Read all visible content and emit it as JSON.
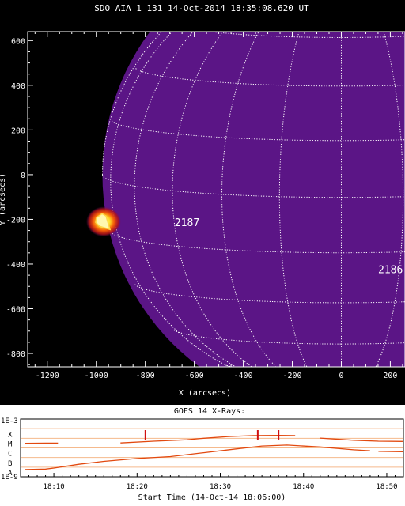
{
  "chart_data": [
    {
      "type": "image",
      "title": "SDO AIA_1 131 14-Oct-2014 18:35:08.620 UT",
      "xlabel": "X (arcsecs)",
      "ylabel": "Y (arcsecs)",
      "xlim": [
        -1280,
        260
      ],
      "ylim": [
        -860,
        640
      ],
      "xticks": [
        -1200,
        -1000,
        -800,
        -600,
        -400,
        -200,
        0,
        200
      ],
      "yticks": [
        -800,
        -600,
        -400,
        -200,
        0,
        200,
        400,
        600
      ],
      "solar_radius_arcsec": 975,
      "grid": "heliographic, 15 degree spacing, dotted white",
      "colors": {
        "disk": "#5b1586",
        "space": "#000000",
        "grid": "#ffffff"
      },
      "flare": {
        "x": -970,
        "y": -210
      },
      "regions": [
        {
          "label": "2187",
          "x": -680,
          "y": -230
        },
        {
          "label": "2186",
          "x": 260,
          "y": -440
        }
      ]
    },
    {
      "type": "line",
      "title": "GOES 14 X-Rays:",
      "xlabel": "Start Time (14-Oct-14 18:06:00)",
      "x_tick_labels": [
        "18:10",
        "18:20",
        "18:30",
        "18:40",
        "18:50"
      ],
      "x_tick_minutes": [
        10,
        20,
        30,
        40,
        50
      ],
      "xlim_minutes": [
        6,
        52
      ],
      "y_left_labels": [
        "1E-3",
        "1E-9"
      ],
      "y_classes": [
        "X",
        "M",
        "C",
        "B",
        "A"
      ],
      "ylim_log10": [
        -9,
        -3
      ],
      "series": [
        {
          "color": "#e2490f",
          "segments": [
            [
              [
                6.5,
                -5.52
              ],
              [
                9,
                -5.5
              ],
              [
                10.5,
                -5.5
              ]
            ],
            [
              [
                18,
                -5.48
              ],
              [
                22,
                -5.3
              ],
              [
                26,
                -5.15
              ],
              [
                28,
                -5.0
              ],
              [
                31,
                -4.82
              ],
              [
                34,
                -4.72
              ],
              [
                37,
                -4.7
              ],
              [
                39,
                -4.72
              ]
            ],
            [
              [
                42,
                -4.98
              ],
              [
                46,
                -5.2
              ],
              [
                49,
                -5.3
              ],
              [
                52,
                -5.33
              ]
            ]
          ]
        },
        {
          "color": "#e2490f",
          "segments": [
            [
              [
                6.5,
                -8.25
              ],
              [
                9,
                -8.2
              ],
              [
                10,
                -8.1
              ],
              [
                13,
                -7.7
              ],
              [
                16,
                -7.4
              ],
              [
                20,
                -7.1
              ],
              [
                24,
                -6.9
              ],
              [
                28,
                -6.5
              ],
              [
                32,
                -6.1
              ],
              [
                35,
                -5.8
              ],
              [
                38,
                -5.7
              ],
              [
                42,
                -5.9
              ],
              [
                46,
                -6.2
              ],
              [
                48,
                -6.3
              ]
            ],
            [
              [
                49,
                -6.35
              ],
              [
                52,
                -6.4
              ]
            ]
          ]
        }
      ],
      "event_markers_minutes": [
        21,
        34.5,
        37
      ],
      "class_line_color": "#f5b98c"
    }
  ]
}
